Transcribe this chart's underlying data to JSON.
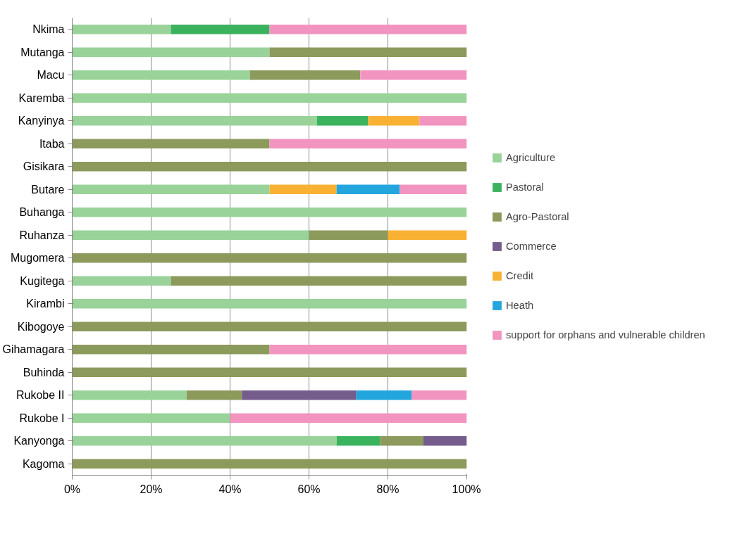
{
  "chart_data": {
    "type": "bar",
    "orientation": "horizontal",
    "stacked": true,
    "categories": [
      "Nkima",
      "Mutanga",
      "Macu",
      "Karemba",
      "Kanyinya",
      "Itaba",
      "Gisikara",
      "Butare",
      "Buhanga",
      "Ruhanza",
      "Mugomera",
      "Kugitega",
      "Kirambi",
      "Kibogoye",
      "Gihamagara",
      "Buhinda",
      "Rukobe II",
      "Rukobe I",
      "Kanyonga",
      "Kagoma"
    ],
    "series": [
      {
        "name": "Agriculture",
        "color": "#99d399",
        "values": [
          25,
          50,
          45,
          100,
          62,
          null,
          null,
          50,
          100,
          60,
          null,
          25,
          100,
          null,
          null,
          null,
          29,
          40,
          67,
          null
        ]
      },
      {
        "name": "Pastoral",
        "color": "#3bb25e",
        "values": [
          25,
          null,
          null,
          null,
          13,
          null,
          null,
          null,
          null,
          null,
          null,
          null,
          null,
          null,
          null,
          null,
          null,
          null,
          11,
          null
        ]
      },
      {
        "name": "Agro-Pastoral",
        "color": "#8c9a5c",
        "values": [
          null,
          50,
          28,
          null,
          null,
          50,
          100,
          null,
          null,
          20,
          100,
          75,
          null,
          100,
          50,
          100,
          14,
          null,
          11,
          100
        ]
      },
      {
        "name": "Commerce",
        "color": "#745c8c",
        "values": [
          null,
          null,
          null,
          null,
          null,
          null,
          null,
          null,
          null,
          null,
          null,
          null,
          null,
          null,
          null,
          null,
          29,
          null,
          11,
          null
        ]
      },
      {
        "name": "Credit",
        "color": "#f8b133",
        "values": [
          null,
          null,
          null,
          null,
          13,
          null,
          null,
          17,
          null,
          20,
          null,
          null,
          null,
          null,
          null,
          null,
          null,
          null,
          null,
          null
        ]
      },
      {
        "name": "Heath",
        "color": "#23a6dd",
        "values": [
          null,
          null,
          null,
          null,
          null,
          null,
          null,
          16,
          null,
          null,
          null,
          null,
          null,
          null,
          null,
          null,
          14,
          null,
          null,
          null
        ]
      },
      {
        "name": "support for orphans and vulnerable children",
        "color": "#f294c0",
        "values": [
          50,
          null,
          27,
          null,
          12,
          50,
          null,
          17,
          null,
          null,
          null,
          null,
          null,
          null,
          50,
          null,
          14,
          60,
          null,
          null
        ]
      }
    ],
    "xlim": [
      0,
      100
    ],
    "xticks": [
      {
        "value": 0,
        "label": "0%"
      },
      {
        "value": 20,
        "label": "20%"
      },
      {
        "value": 40,
        "label": "40%"
      },
      {
        "value": 60,
        "label": "60%"
      },
      {
        "value": 80,
        "label": "80%"
      },
      {
        "value": 100,
        "label": "100%"
      }
    ],
    "grid": "x",
    "legend": "right"
  }
}
